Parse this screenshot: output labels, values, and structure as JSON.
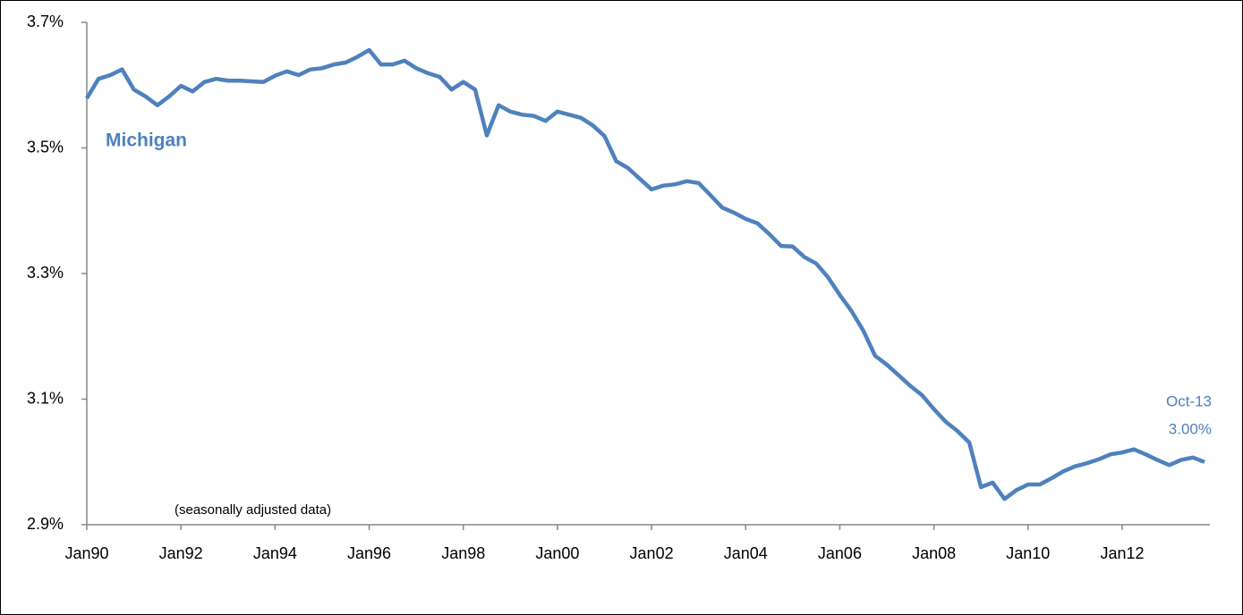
{
  "chart_data": {
    "type": "line",
    "categories": [
      "Jan90",
      null,
      null,
      null,
      null,
      null,
      null,
      null,
      "Jan92",
      null,
      null,
      null,
      null,
      null,
      null,
      null,
      "Jan94",
      null,
      null,
      null,
      null,
      null,
      null,
      null,
      "Jan96",
      null,
      null,
      null,
      null,
      null,
      null,
      null,
      "Jan98",
      null,
      null,
      null,
      null,
      null,
      null,
      null,
      "Jan00",
      null,
      null,
      null,
      null,
      null,
      null,
      null,
      "Jan02",
      null,
      null,
      null,
      null,
      null,
      null,
      null,
      "Jan04",
      null,
      null,
      null,
      null,
      null,
      null,
      null,
      "Jan06",
      null,
      null,
      null,
      null,
      null,
      null,
      null,
      "Jan08",
      null,
      null,
      null,
      null,
      null,
      null,
      null,
      "Jan10",
      null,
      null,
      null,
      null,
      null,
      null,
      null,
      "Jan12",
      null,
      null,
      null,
      null,
      null,
      null,
      null
    ],
    "series": [
      {
        "name": "Michigan",
        "color": "#4f81bd",
        "values": [
          3.579,
          3.61,
          3.616,
          3.625,
          3.593,
          3.582,
          3.568,
          3.582,
          3.599,
          3.59,
          3.605,
          3.61,
          3.607,
          3.607,
          3.606,
          3.605,
          3.615,
          3.622,
          3.616,
          3.625,
          3.627,
          3.633,
          3.636,
          3.645,
          3.656,
          3.633,
          3.633,
          3.639,
          3.627,
          3.619,
          3.613,
          3.593,
          3.605,
          3.593,
          3.52,
          3.568,
          3.558,
          3.553,
          3.551,
          3.543,
          3.558,
          3.553,
          3.548,
          3.536,
          3.519,
          3.479,
          3.468,
          3.451,
          3.434,
          3.44,
          3.442,
          3.447,
          3.444,
          3.425,
          3.405,
          3.397,
          3.387,
          3.38,
          3.363,
          3.344,
          3.343,
          3.326,
          3.316,
          3.294,
          3.266,
          3.24,
          3.209,
          3.169,
          3.155,
          3.138,
          3.121,
          3.106,
          3.084,
          3.064,
          3.049,
          3.031,
          2.96,
          2.967,
          2.941,
          2.955,
          2.964,
          2.964,
          2.974,
          2.985,
          2.993,
          2.998,
          3.004,
          3.012,
          3.015,
          3.02,
          3.012,
          3.003,
          2.995,
          3.003,
          3.007,
          3.0
        ]
      }
    ],
    "ylim": [
      2.9,
      3.7
    ],
    "yticks": [
      {
        "value": 2.9,
        "label": "2.9%"
      },
      {
        "value": 3.1,
        "label": "3.1%"
      },
      {
        "value": 3.3,
        "label": "3.3%"
      },
      {
        "value": 3.5,
        "label": "3.5%"
      },
      {
        "value": 3.7,
        "label": "3.7%"
      }
    ],
    "annotations": [
      "Michigan",
      "Oct-13",
      "3.00%",
      "(seasonally adjusted data)"
    ]
  }
}
